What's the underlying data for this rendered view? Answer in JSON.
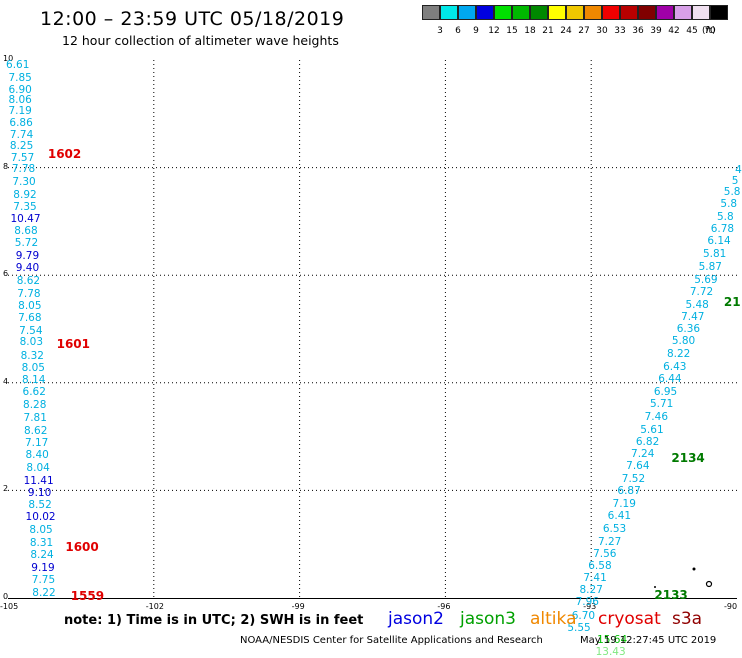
{
  "header": {
    "title": "12:00 – 23:59 UTC 05/18/2019",
    "subtitle": "12 hour collection of altimeter wave heights"
  },
  "color_scale": {
    "unit": "(ft)",
    "swatches": [
      {
        "color": "#7f7f7f",
        "label": "3"
      },
      {
        "color": "#00e8e8",
        "label": "6"
      },
      {
        "color": "#00a8f0",
        "label": "9"
      },
      {
        "color": "#0000e0",
        "label": "12"
      },
      {
        "color": "#00e000",
        "label": "15"
      },
      {
        "color": "#00b800",
        "label": "18"
      },
      {
        "color": "#008800",
        "label": "21"
      },
      {
        "color": "#ffff00",
        "label": "24"
      },
      {
        "color": "#f0c800",
        "label": "27"
      },
      {
        "color": "#f08800",
        "label": "30"
      },
      {
        "color": "#f00000",
        "label": "33"
      },
      {
        "color": "#b80000",
        "label": "36"
      },
      {
        "color": "#800000",
        "label": "39"
      },
      {
        "color": "#a000a8",
        "label": "42"
      },
      {
        "color": "#d8a0e8",
        "label": "45"
      },
      {
        "color": "#f0e0f0",
        "label": "70"
      },
      {
        "color": "#000000",
        "label": ""
      }
    ]
  },
  "axes": {
    "y_ticks": [
      "0",
      "2",
      "4",
      "6",
      "8",
      "10"
    ],
    "x_ticks": [
      "-105",
      "-102",
      "-99",
      "-96",
      "-93",
      "-90"
    ]
  },
  "chart_data": {
    "type": "scatter",
    "xlim": [
      -105,
      -90
    ],
    "ylim": [
      0,
      10
    ],
    "grid": true,
    "tracks": [
      {
        "color": "#00b0e0",
        "points": [
          {
            "x": -104.8,
            "y": 9.9,
            "label": "6.61"
          },
          {
            "x": -104.75,
            "y": 9.66,
            "label": "7.85"
          },
          {
            "x": -104.75,
            "y": 9.45,
            "label": "6.90"
          },
          {
            "x": -104.75,
            "y": 9.25,
            "label": "8.06"
          },
          {
            "x": -104.75,
            "y": 9.05,
            "label": "7.19"
          },
          {
            "x": -104.73,
            "y": 8.82,
            "label": "6.86"
          },
          {
            "x": -104.72,
            "y": 8.6,
            "label": "7.74"
          },
          {
            "x": -104.72,
            "y": 8.4,
            "label": "8.25"
          },
          {
            "x": -104.7,
            "y": 8.18,
            "label": "7.57"
          },
          {
            "x": -104.68,
            "y": 7.98,
            "label": "7.78"
          },
          {
            "x": -104.67,
            "y": 7.73,
            "label": "7.30"
          },
          {
            "x": -104.65,
            "y": 7.5,
            "label": "8.92"
          },
          {
            "x": -104.65,
            "y": 7.27,
            "label": "7.35"
          },
          {
            "x": -104.64,
            "y": 7.05,
            "label": "10.47"
          },
          {
            "x": -104.63,
            "y": 6.83,
            "label": "8.68"
          },
          {
            "x": -104.62,
            "y": 6.6,
            "label": "5.72"
          },
          {
            "x": -104.6,
            "y": 6.35,
            "label": "9.79"
          },
          {
            "x": -104.6,
            "y": 6.13,
            "label": "9.40"
          },
          {
            "x": -104.58,
            "y": 5.9,
            "label": "8.62"
          },
          {
            "x": -104.57,
            "y": 5.65,
            "label": "7.78"
          },
          {
            "x": -104.55,
            "y": 5.43,
            "label": "8.05"
          },
          {
            "x": -104.55,
            "y": 5.2,
            "label": "7.68"
          },
          {
            "x": -104.53,
            "y": 4.97,
            "label": "7.54"
          },
          {
            "x": -104.52,
            "y": 4.75,
            "label": "8.03"
          },
          {
            "x": -104.5,
            "y": 4.5,
            "label": "8.32"
          },
          {
            "x": -104.48,
            "y": 4.28,
            "label": "8.05"
          },
          {
            "x": -104.47,
            "y": 4.05,
            "label": "8.14"
          },
          {
            "x": -104.46,
            "y": 3.82,
            "label": "6.62"
          },
          {
            "x": -104.45,
            "y": 3.58,
            "label": "8.28"
          },
          {
            "x": -104.44,
            "y": 3.35,
            "label": "7.81"
          },
          {
            "x": -104.43,
            "y": 3.1,
            "label": "8.62"
          },
          {
            "x": -104.41,
            "y": 2.88,
            "label": "7.17"
          },
          {
            "x": -104.4,
            "y": 2.65,
            "label": "8.40"
          },
          {
            "x": -104.38,
            "y": 2.42,
            "label": "8.04"
          },
          {
            "x": -104.37,
            "y": 2.18,
            "label": "11.41"
          },
          {
            "x": -104.35,
            "y": 1.95,
            "label": "9.10"
          },
          {
            "x": -104.34,
            "y": 1.73,
            "label": "8.52"
          },
          {
            "x": -104.33,
            "y": 1.5,
            "label": "10.02"
          },
          {
            "x": -104.32,
            "y": 1.27,
            "label": "8.05"
          },
          {
            "x": -104.31,
            "y": 1.03,
            "label": "8.31"
          },
          {
            "x": -104.3,
            "y": 0.8,
            "label": "8.24"
          },
          {
            "x": -104.28,
            "y": 0.55,
            "label": "9.19"
          },
          {
            "x": -104.27,
            "y": 0.33,
            "label": "7.75"
          },
          {
            "x": -104.26,
            "y": 0.1,
            "label": "8.22"
          }
        ]
      },
      {
        "color": "#00b0e0",
        "points": [
          {
            "x": -89.97,
            "y": 7.95,
            "label": "4"
          },
          {
            "x": -90.04,
            "y": 7.75,
            "label": "5"
          },
          {
            "x": -90.1,
            "y": 7.55,
            "label": "5.8"
          },
          {
            "x": -90.17,
            "y": 7.32,
            "label": "5.8"
          },
          {
            "x": -90.24,
            "y": 7.08,
            "label": "5.8"
          },
          {
            "x": -90.3,
            "y": 6.85,
            "label": "6.78"
          },
          {
            "x": -90.37,
            "y": 6.63,
            "label": "6.14"
          },
          {
            "x": -90.46,
            "y": 6.4,
            "label": "5.81"
          },
          {
            "x": -90.55,
            "y": 6.15,
            "label": "5.87"
          },
          {
            "x": -90.64,
            "y": 5.92,
            "label": "5.69"
          },
          {
            "x": -90.73,
            "y": 5.68,
            "label": "7.72"
          },
          {
            "x": -90.82,
            "y": 5.45,
            "label": "5.48"
          },
          {
            "x": -90.91,
            "y": 5.23,
            "label": "7.47"
          },
          {
            "x": -91.0,
            "y": 5.0,
            "label": "6.36"
          },
          {
            "x": -91.1,
            "y": 4.77,
            "label": "5.80"
          },
          {
            "x": -91.2,
            "y": 4.53,
            "label": "8.22"
          },
          {
            "x": -91.28,
            "y": 4.3,
            "label": "6.43"
          },
          {
            "x": -91.38,
            "y": 4.07,
            "label": "6.44"
          },
          {
            "x": -91.47,
            "y": 3.83,
            "label": "6.95"
          },
          {
            "x": -91.55,
            "y": 3.6,
            "label": "5.71"
          },
          {
            "x": -91.66,
            "y": 3.37,
            "label": "7.46"
          },
          {
            "x": -91.75,
            "y": 3.13,
            "label": "5.61"
          },
          {
            "x": -91.84,
            "y": 2.9,
            "label": "6.82"
          },
          {
            "x": -91.94,
            "y": 2.67,
            "label": "7.24"
          },
          {
            "x": -92.04,
            "y": 2.45,
            "label": "7.64"
          },
          {
            "x": -92.13,
            "y": 2.22,
            "label": "7.52"
          },
          {
            "x": -92.22,
            "y": 1.98,
            "label": "6.87"
          },
          {
            "x": -92.32,
            "y": 1.75,
            "label": "7.19"
          },
          {
            "x": -92.42,
            "y": 1.52,
            "label": "6.41"
          },
          {
            "x": -92.52,
            "y": 1.28,
            "label": "6.53"
          },
          {
            "x": -92.62,
            "y": 1.05,
            "label": "7.27"
          },
          {
            "x": -92.72,
            "y": 0.82,
            "label": "7.56"
          },
          {
            "x": -92.82,
            "y": 0.6,
            "label": "6.58"
          },
          {
            "x": -92.92,
            "y": 0.37,
            "label": "7.41"
          },
          {
            "x": -93.0,
            "y": 0.15,
            "label": "8.27"
          },
          {
            "x": -93.08,
            "y": -0.08,
            "label": "7.96"
          },
          {
            "x": -93.16,
            "y": -0.33,
            "label": "6.70"
          },
          {
            "x": -93.25,
            "y": -0.55,
            "label": "5.55"
          }
        ]
      },
      {
        "color": "#00b000",
        "points": [
          {
            "x": -92.57,
            "y": -0.78,
            "label": "15.64"
          },
          {
            "x": -92.6,
            "y": -1.0,
            "label": "13.43"
          }
        ]
      }
    ],
    "pass_labels": [
      {
        "x": -104.18,
        "y": 8.25,
        "text": "1602",
        "color": "#e00000"
      },
      {
        "x": -104.0,
        "y": 4.73,
        "text": "1601",
        "color": "#e00000"
      },
      {
        "x": -103.82,
        "y": 0.95,
        "text": "1600",
        "color": "#e00000"
      },
      {
        "x": -103.71,
        "y": 0.03,
        "text": "1559",
        "color": "#e00000"
      },
      {
        "x": -90.27,
        "y": 5.5,
        "text": "21",
        "color": "#007a00"
      },
      {
        "x": -91.35,
        "y": 2.6,
        "text": "2134",
        "color": "#007a00"
      },
      {
        "x": -91.7,
        "y": 0.05,
        "text": "2133",
        "color": "#007a00"
      }
    ]
  },
  "legend": {
    "note": "note:  1) Time is in UTC;  2) SWH is in feet",
    "satellites": [
      {
        "name": "jason2",
        "color": "#0000e0"
      },
      {
        "name": "jason3",
        "color": "#00a000"
      },
      {
        "name": "altika",
        "color": "#f08800"
      },
      {
        "name": "cryosat",
        "color": "#e00000"
      },
      {
        "name": "s3a",
        "color": "#900000"
      }
    ]
  },
  "footer": {
    "credit": "NOAA/NESDIS Center for Satellite Applications and Research",
    "timestamp": "May 19 12:27:45 UTC 2019"
  }
}
